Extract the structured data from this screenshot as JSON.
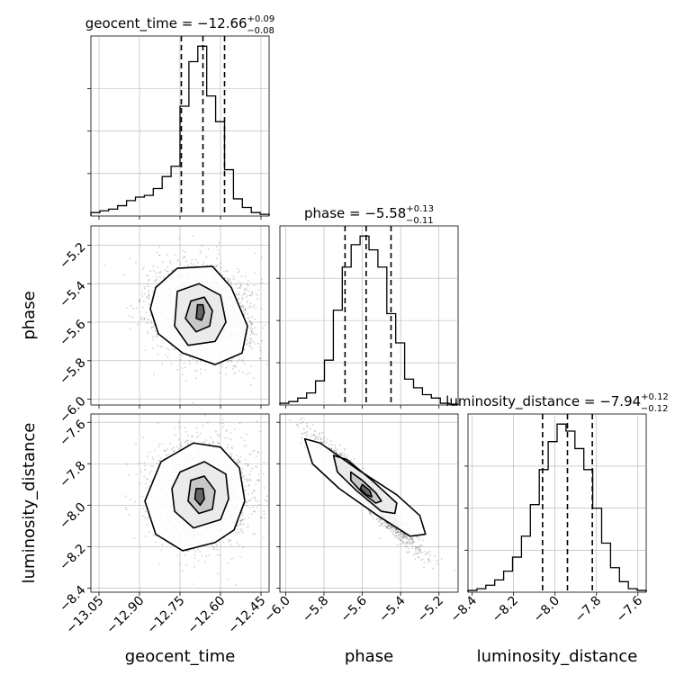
{
  "chart_data": {
    "type": "corner",
    "parameters": [
      {
        "name": "geocent_time",
        "median": -12.66,
        "err_plus": 0.09,
        "err_minus": 0.08,
        "title_main": "geocent_time = −12.66",
        "title_sup": "+0.09",
        "title_sub": "−0.08",
        "range": [
          -13.08,
          -12.42
        ],
        "ticks": [
          {
            "value": -13.05,
            "label": "−13.05"
          },
          {
            "value": -12.9,
            "label": "−12.90"
          },
          {
            "value": -12.75,
            "label": "−12.75"
          },
          {
            "value": -12.6,
            "label": "−12.60"
          },
          {
            "value": -12.45,
            "label": "−12.45"
          }
        ],
        "quantiles": [
          -12.745,
          -12.665,
          -12.585
        ]
      },
      {
        "name": "phase",
        "median": -5.58,
        "err_plus": 0.13,
        "err_minus": 0.11,
        "title_main": "phase = −5.58",
        "title_sup": "+0.13",
        "title_sub": "−0.11",
        "range": [
          -6.03,
          -5.1
        ],
        "ticks": [
          {
            "value": -6.0,
            "label": "−6.0"
          },
          {
            "value": -5.8,
            "label": "−5.8"
          },
          {
            "value": -5.6,
            "label": "−5.6"
          },
          {
            "value": -5.4,
            "label": "−5.4"
          },
          {
            "value": -5.2,
            "label": "−5.2"
          }
        ],
        "quantiles": [
          -5.69,
          -5.58,
          -5.45
        ]
      },
      {
        "name": "luminosity_distance",
        "median": -7.94,
        "err_plus": 0.12,
        "err_minus": 0.12,
        "title_main": "luminosity_distance = −7.94",
        "title_sup": "+0.12",
        "title_sub": "−0.12",
        "range": [
          -8.42,
          -7.56
        ],
        "ticks": [
          {
            "value": -8.4,
            "label": "−8.4"
          },
          {
            "value": -8.2,
            "label": "−8.2"
          },
          {
            "value": -8.0,
            "label": "−8.0"
          },
          {
            "value": -7.8,
            "label": "−7.8"
          },
          {
            "value": -7.6,
            "label": "−7.6"
          }
        ],
        "quantiles": [
          -8.06,
          -7.94,
          -7.82
        ]
      }
    ],
    "histograms": [
      {
        "param": "geocent_time",
        "bins": [
          -13.08,
          -13.047,
          -13.014,
          -12.981,
          -12.948,
          -12.915,
          -12.882,
          -12.849,
          -12.816,
          -12.783,
          -12.75,
          -12.717,
          -12.684,
          -12.651,
          -12.618,
          -12.585,
          -12.552,
          -12.519,
          -12.486,
          -12.453,
          -12.42
        ],
        "counts": [
          0.02,
          0.03,
          0.04,
          0.06,
          0.09,
          0.11,
          0.12,
          0.16,
          0.23,
          0.29,
          0.64,
          0.9,
          0.99,
          0.7,
          0.55,
          0.27,
          0.1,
          0.05,
          0.02,
          0.01
        ]
      },
      {
        "param": "phase",
        "bins": [
          -6.03,
          -5.9835,
          -5.937,
          -5.8905,
          -5.844,
          -5.7975,
          -5.751,
          -5.7045,
          -5.658,
          -5.6115,
          -5.565,
          -5.5185,
          -5.472,
          -5.4255,
          -5.379,
          -5.3325,
          -5.286,
          -5.2395,
          -5.193,
          -5.1465,
          -5.1
        ],
        "counts": [
          0.01,
          0.02,
          0.04,
          0.07,
          0.14,
          0.26,
          0.55,
          0.8,
          0.93,
          0.98,
          0.9,
          0.8,
          0.53,
          0.36,
          0.15,
          0.1,
          0.06,
          0.04,
          0.01,
          0.005
        ]
      },
      {
        "param": "luminosity_distance",
        "bins": [
          -8.42,
          -8.377,
          -8.334,
          -8.291,
          -8.248,
          -8.205,
          -8.162,
          -8.119,
          -8.076,
          -8.033,
          -7.99,
          -7.947,
          -7.904,
          -7.861,
          -7.818,
          -7.775,
          -7.732,
          -7.689,
          -7.646,
          -7.603,
          -7.56
        ],
        "counts": [
          0.01,
          0.02,
          0.04,
          0.07,
          0.12,
          0.2,
          0.32,
          0.5,
          0.7,
          0.86,
          0.96,
          0.92,
          0.82,
          0.7,
          0.48,
          0.28,
          0.14,
          0.06,
          0.02,
          0.01
        ]
      }
    ],
    "pairs": [
      {
        "x_param": "geocent_time",
        "y_param": "phase",
        "center": [
          -12.67,
          -5.55
        ],
        "spread": [
          0.09,
          0.12
        ],
        "correlation": -0.15,
        "contours": [
          [
            [
              -12.84,
              -5.42
            ],
            [
              -12.76,
              -5.32
            ],
            [
              -12.63,
              -5.31
            ],
            [
              -12.56,
              -5.42
            ],
            [
              -12.5,
              -5.62
            ],
            [
              -12.52,
              -5.76
            ],
            [
              -12.62,
              -5.82
            ],
            [
              -12.74,
              -5.76
            ],
            [
              -12.83,
              -5.66
            ],
            [
              -12.86,
              -5.53
            ]
          ],
          [
            [
              -12.76,
              -5.44
            ],
            [
              -12.68,
              -5.4
            ],
            [
              -12.6,
              -5.46
            ],
            [
              -12.58,
              -5.6
            ],
            [
              -12.62,
              -5.7
            ],
            [
              -12.72,
              -5.72
            ],
            [
              -12.77,
              -5.62
            ]
          ],
          [
            [
              -12.71,
              -5.49
            ],
            [
              -12.66,
              -5.47
            ],
            [
              -12.63,
              -5.54
            ],
            [
              -12.64,
              -5.62
            ],
            [
              -12.69,
              -5.65
            ],
            [
              -12.73,
              -5.58
            ]
          ],
          [
            [
              -12.685,
              -5.51
            ],
            [
              -12.665,
              -5.51
            ],
            [
              -12.66,
              -5.55
            ],
            [
              -12.67,
              -5.59
            ],
            [
              -12.69,
              -5.58
            ]
          ]
        ]
      },
      {
        "x_param": "geocent_time",
        "y_param": "luminosity_distance",
        "center": [
          -12.67,
          -7.95
        ],
        "spread": [
          0.09,
          0.12
        ],
        "correlation": 0.05,
        "contours": [
          [
            [
              -12.82,
              -7.79
            ],
            [
              -12.7,
              -7.7
            ],
            [
              -12.6,
              -7.72
            ],
            [
              -12.53,
              -7.82
            ],
            [
              -12.51,
              -7.98
            ],
            [
              -12.55,
              -8.12
            ],
            [
              -12.62,
              -8.18
            ],
            [
              -12.74,
              -8.22
            ],
            [
              -12.84,
              -8.14
            ],
            [
              -12.88,
              -7.98
            ]
          ],
          [
            [
              -12.75,
              -7.84
            ],
            [
              -12.66,
              -7.79
            ],
            [
              -12.58,
              -7.85
            ],
            [
              -12.57,
              -7.97
            ],
            [
              -12.6,
              -8.07
            ],
            [
              -12.7,
              -8.11
            ],
            [
              -12.77,
              -8.03
            ],
            [
              -12.78,
              -7.92
            ]
          ],
          [
            [
              -12.71,
              -7.88
            ],
            [
              -12.66,
              -7.86
            ],
            [
              -12.62,
              -7.93
            ],
            [
              -12.63,
              -8.02
            ],
            [
              -12.68,
              -8.04
            ],
            [
              -12.72,
              -7.98
            ]
          ],
          [
            [
              -12.69,
              -7.92
            ],
            [
              -12.665,
              -7.92
            ],
            [
              -12.66,
              -7.97
            ],
            [
              -12.675,
              -8.0
            ],
            [
              -12.695,
              -7.97
            ]
          ]
        ]
      },
      {
        "x_param": "phase",
        "y_param": "luminosity_distance",
        "center": [
          -5.58,
          -7.94
        ],
        "spread": [
          0.12,
          0.12
        ],
        "correlation": -0.96,
        "contours": [
          [
            [
              -5.9,
              -7.68
            ],
            [
              -5.82,
              -7.7
            ],
            [
              -5.62,
              -7.83
            ],
            [
              -5.42,
              -7.95
            ],
            [
              -5.3,
              -8.05
            ],
            [
              -5.27,
              -8.14
            ],
            [
              -5.35,
              -8.15
            ],
            [
              -5.52,
              -8.05
            ],
            [
              -5.72,
              -7.92
            ],
            [
              -5.86,
              -7.8
            ]
          ],
          [
            [
              -5.75,
              -7.76
            ],
            [
              -5.68,
              -7.78
            ],
            [
              -5.55,
              -7.88
            ],
            [
              -5.42,
              -7.99
            ],
            [
              -5.43,
              -8.04
            ],
            [
              -5.5,
              -8.03
            ],
            [
              -5.63,
              -7.93
            ],
            [
              -5.73,
              -7.84
            ]
          ],
          [
            [
              -5.66,
              -7.84
            ],
            [
              -5.6,
              -7.88
            ],
            [
              -5.53,
              -7.94
            ],
            [
              -5.5,
              -7.98
            ],
            [
              -5.53,
              -7.99
            ],
            [
              -5.6,
              -7.94
            ],
            [
              -5.66,
              -7.88
            ]
          ],
          [
            [
              -5.6,
              -7.9
            ],
            [
              -5.56,
              -7.93
            ],
            [
              -5.55,
              -7.96
            ],
            [
              -5.58,
              -7.95
            ],
            [
              -5.61,
              -7.92
            ]
          ]
        ]
      }
    ],
    "grid": true,
    "legend": "none"
  }
}
